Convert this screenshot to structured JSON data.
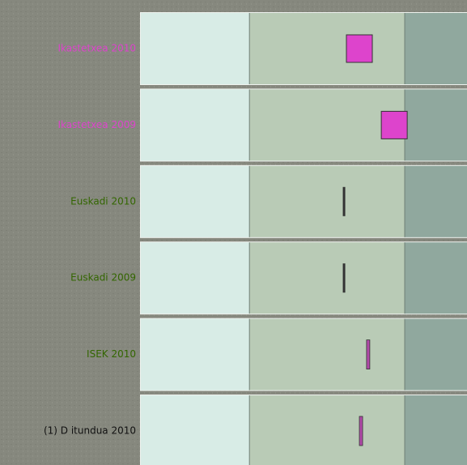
{
  "chart_data": {
    "type": "bullet",
    "categories": [
      "Ikastetxea 2010",
      "Ikastetxea 2009",
      "Euskadi 2010",
      "Euskadi 2009",
      "ISEK 2010",
      "(1) D itundua 2010"
    ],
    "values": [
      67,
      77.7,
      62.3,
      62.3,
      69.7,
      67.5
    ],
    "label_colors": [
      "#dd44cc",
      "#dd44cc",
      "#336600",
      "#336600",
      "#336600",
      "#111111"
    ],
    "markers": [
      "square",
      "square",
      "line",
      "line",
      "bar",
      "bar"
    ],
    "marker_colors": [
      "#dd44cc",
      "#dd44cc",
      "#333333",
      "#333333",
      "#b04aa8",
      "#b04aa8"
    ],
    "xlim": [
      0,
      100
    ],
    "bands": [
      33.3,
      80.9
    ],
    "band_colors": [
      "#d8ece6",
      "#b9cbb6",
      "#90a89e"
    ]
  }
}
